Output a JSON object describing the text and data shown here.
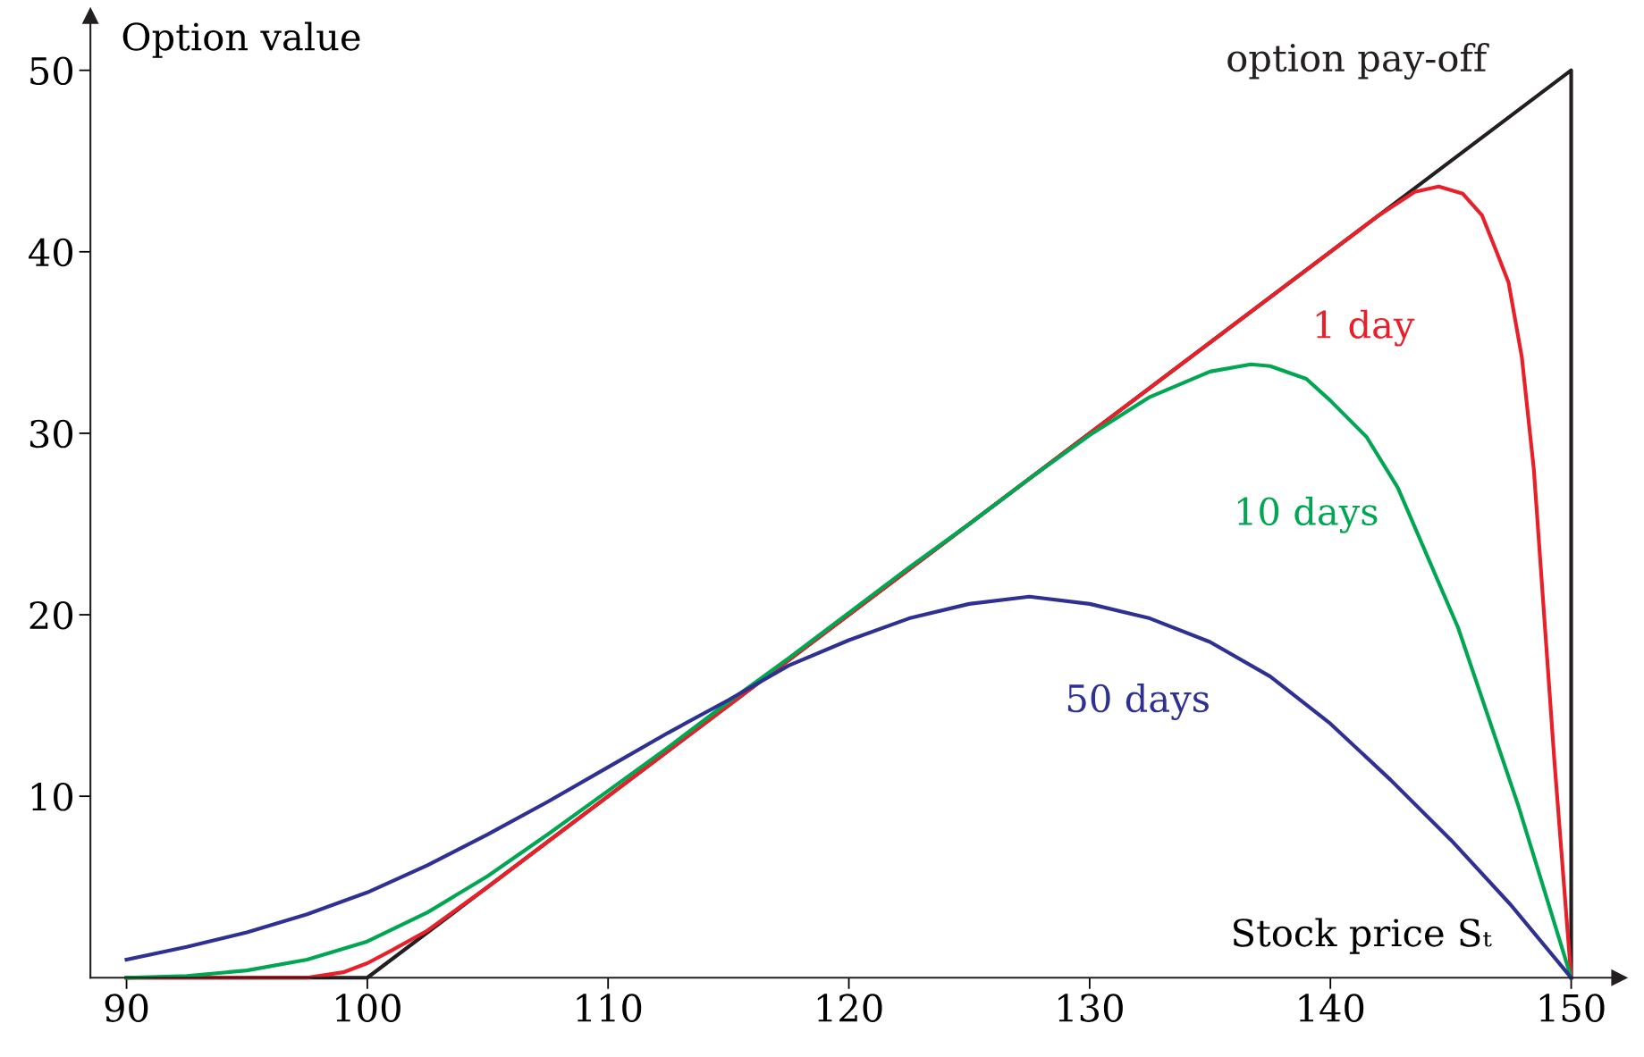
{
  "chart_data": {
    "type": "line",
    "xlabel": "Stock price Sₜ",
    "ylabel": "Option value",
    "xlim": [
      88.5,
      152
    ],
    "ylim": [
      0,
      53
    ],
    "xticks": [
      90,
      100,
      110,
      120,
      130,
      140,
      150
    ],
    "yticks": [
      10,
      20,
      30,
      40,
      50
    ],
    "grid": false,
    "legend": false,
    "marker": "none",
    "line_style": "solid",
    "series": [
      {
        "name": "option pay-off",
        "color": "#231f20",
        "x": [
          90,
          100,
          150,
          150
        ],
        "values": [
          0,
          0,
          50,
          0
        ]
      },
      {
        "name": "1 day",
        "color": "#e8202a",
        "x": [
          90,
          95,
          97.5,
          99,
          100,
          101,
          102.5,
          105,
          110,
          120,
          130,
          140,
          142,
          143.5,
          144.5,
          145.5,
          146.3,
          146.9,
          147.4,
          147.95,
          148.45,
          149.3,
          150
        ],
        "values": [
          0,
          0,
          0,
          0.3,
          0.8,
          1.5,
          2.6,
          5,
          10,
          20,
          30,
          40,
          42,
          43.3,
          43.6,
          43.2,
          42,
          40,
          38.3,
          34.2,
          28,
          12,
          0
        ]
      },
      {
        "name": "10 days",
        "color": "#00a651",
        "x": [
          90,
          92.5,
          95,
          97.5,
          100,
          102.5,
          105,
          107.5,
          110,
          112.5,
          115,
          117.5,
          120,
          122.5,
          125,
          127.5,
          130,
          132.5,
          135,
          136.7,
          137.5,
          139,
          140,
          141.5,
          142.8,
          145.3,
          147.8,
          150
        ],
        "values": [
          0,
          0.1,
          0.4,
          1.0,
          2.0,
          3.6,
          5.6,
          7.9,
          10.3,
          12.7,
          15.2,
          17.6,
          20.1,
          22.6,
          25,
          27.5,
          29.9,
          32.0,
          33.4,
          33.8,
          33.7,
          33,
          31.8,
          29.8,
          27,
          19.3,
          9.5,
          0
        ]
      },
      {
        "name": "50 days",
        "color": "#2e3192",
        "x": [
          90,
          92.5,
          95,
          97.5,
          100,
          102.5,
          105,
          107.5,
          110,
          112.5,
          115,
          117.5,
          120,
          122.5,
          125,
          127.5,
          130,
          132.5,
          135,
          137.5,
          140,
          142.5,
          145,
          147.5,
          150
        ],
        "values": [
          1.0,
          1.7,
          2.5,
          3.5,
          4.7,
          6.2,
          7.9,
          9.7,
          11.6,
          13.5,
          15.3,
          17.2,
          18.6,
          19.8,
          20.6,
          21.0,
          20.6,
          19.8,
          18.5,
          16.6,
          14.0,
          10.9,
          7.6,
          4.0,
          0
        ]
      }
    ]
  }
}
